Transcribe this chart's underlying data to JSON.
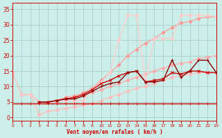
{
  "background_color": "#cceee8",
  "grid_color": "#aad4ce",
  "xlabel": "Vent moyen/en rafales ( km/h )",
  "xlim": [
    0,
    23
  ],
  "ylim": [
    -1,
    37
  ],
  "yticks": [
    0,
    5,
    10,
    15,
    20,
    25,
    30,
    35
  ],
  "xticks": [
    0,
    1,
    2,
    3,
    4,
    5,
    6,
    7,
    8,
    9,
    10,
    11,
    12,
    13,
    14,
    15,
    16,
    17,
    18,
    19,
    20,
    21,
    22,
    23
  ],
  "series": [
    {
      "x": [
        0,
        1,
        2,
        3,
        4,
        5,
        6,
        7,
        8,
        9,
        10,
        11,
        12,
        13,
        14,
        15,
        16,
        17,
        18,
        19,
        20,
        21,
        22,
        23
      ],
      "y": [
        4.5,
        4.5,
        4.5,
        4.5,
        4.5,
        4.5,
        4.5,
        4.5,
        4.5,
        4.5,
        4.5,
        4.5,
        4.5,
        4.5,
        4.5,
        4.5,
        4.5,
        4.5,
        4.5,
        4.5,
        4.5,
        4.5,
        4.5,
        4.5
      ],
      "color": "#cc0000",
      "lw": 1.0,
      "marker": "+",
      "ms": 3.5,
      "zorder": 5
    },
    {
      "x": [
        0,
        1,
        2,
        3,
        4,
        5,
        6,
        7,
        8,
        9,
        10,
        11,
        12,
        13,
        14,
        15,
        16,
        17,
        18,
        19,
        20,
        21,
        22,
        23
      ],
      "y": [
        14.5,
        7.5,
        7.5,
        1.0,
        2.0,
        2.5,
        3.0,
        3.5,
        4.0,
        4.5,
        5.5,
        6.5,
        7.5,
        8.5,
        9.5,
        10.0,
        11.0,
        12.0,
        13.0,
        13.5,
        14.0,
        14.5,
        14.5,
        14.5
      ],
      "color": "#ffbbbb",
      "lw": 0.9,
      "marker": "D",
      "ms": 2.5,
      "zorder": 2
    },
    {
      "x": [
        1,
        2,
        3,
        4,
        5,
        6,
        7,
        8,
        9,
        10,
        11,
        12,
        13,
        14,
        15,
        16,
        17,
        18,
        19,
        20,
        21,
        22,
        23
      ],
      "y": [
        7.5,
        7.5,
        5.0,
        5.0,
        5.5,
        6.0,
        6.5,
        7.0,
        8.0,
        9.0,
        10.0,
        11.0,
        12.0,
        13.0,
        14.0,
        15.0,
        16.0,
        17.0,
        17.5,
        18.0,
        19.0,
        19.5,
        20.0
      ],
      "color": "#ffaaaa",
      "lw": 0.9,
      "marker": "D",
      "ms": 2.5,
      "zorder": 2
    },
    {
      "x": [
        1,
        2,
        3,
        4,
        5,
        6,
        7,
        8,
        9,
        10,
        11,
        12,
        13,
        14,
        15,
        16,
        17,
        18,
        19,
        20,
        21,
        22,
        23
      ],
      "y": [
        7.5,
        7.5,
        5.0,
        5.0,
        5.5,
        6.5,
        7.0,
        8.0,
        9.5,
        12.0,
        14.5,
        17.0,
        20.0,
        22.0,
        24.0,
        25.5,
        27.5,
        29.0,
        30.5,
        31.0,
        32.0,
        32.5,
        32.5
      ],
      "color": "#ff9999",
      "lw": 0.9,
      "marker": "D",
      "ms": 2.5,
      "zorder": 2
    },
    {
      "x": [
        1,
        2,
        3,
        4,
        5,
        6,
        7,
        8,
        9,
        10,
        11,
        12,
        13,
        14,
        15,
        16,
        17,
        18,
        19,
        20,
        21,
        22,
        23
      ],
      "y": [
        7.5,
        7.5,
        5.0,
        5.0,
        5.0,
        5.5,
        5.5,
        5.5,
        9.0,
        11.5,
        14.5,
        25.0,
        33.0,
        33.0,
        12.0,
        25.5,
        25.5,
        25.5,
        33.0,
        33.0,
        33.0,
        33.0,
        32.5
      ],
      "color": "#ffcccc",
      "lw": 0.9,
      "marker": "D",
      "ms": 2.5,
      "zorder": 2
    },
    {
      "x": [
        3,
        4,
        5,
        6,
        7,
        8,
        9,
        10,
        11,
        12,
        13,
        14,
        15,
        16,
        17,
        18,
        19,
        20,
        21,
        22,
        23
      ],
      "y": [
        5.0,
        5.0,
        5.5,
        6.0,
        6.5,
        7.5,
        9.0,
        11.0,
        12.0,
        13.5,
        14.5,
        15.0,
        11.5,
        12.0,
        12.5,
        14.5,
        14.0,
        15.0,
        15.0,
        14.5,
        14.5
      ],
      "color": "#cc0000",
      "lw": 1.0,
      "marker": "x",
      "ms": 3.5,
      "zorder": 4
    },
    {
      "x": [
        3,
        4,
        5,
        6,
        7,
        8,
        9,
        10,
        11,
        12,
        13,
        14,
        15,
        16,
        17,
        18,
        19,
        20,
        21,
        22,
        23
      ],
      "y": [
        5.0,
        5.0,
        5.5,
        6.0,
        6.0,
        7.0,
        8.5,
        10.0,
        11.0,
        11.5,
        14.5,
        15.0,
        11.5,
        11.5,
        12.0,
        18.5,
        13.0,
        15.0,
        18.5,
        18.5,
        14.5
      ],
      "color": "#880000",
      "lw": 1.0,
      "marker": "+",
      "ms": 3.5,
      "zorder": 4
    }
  ]
}
